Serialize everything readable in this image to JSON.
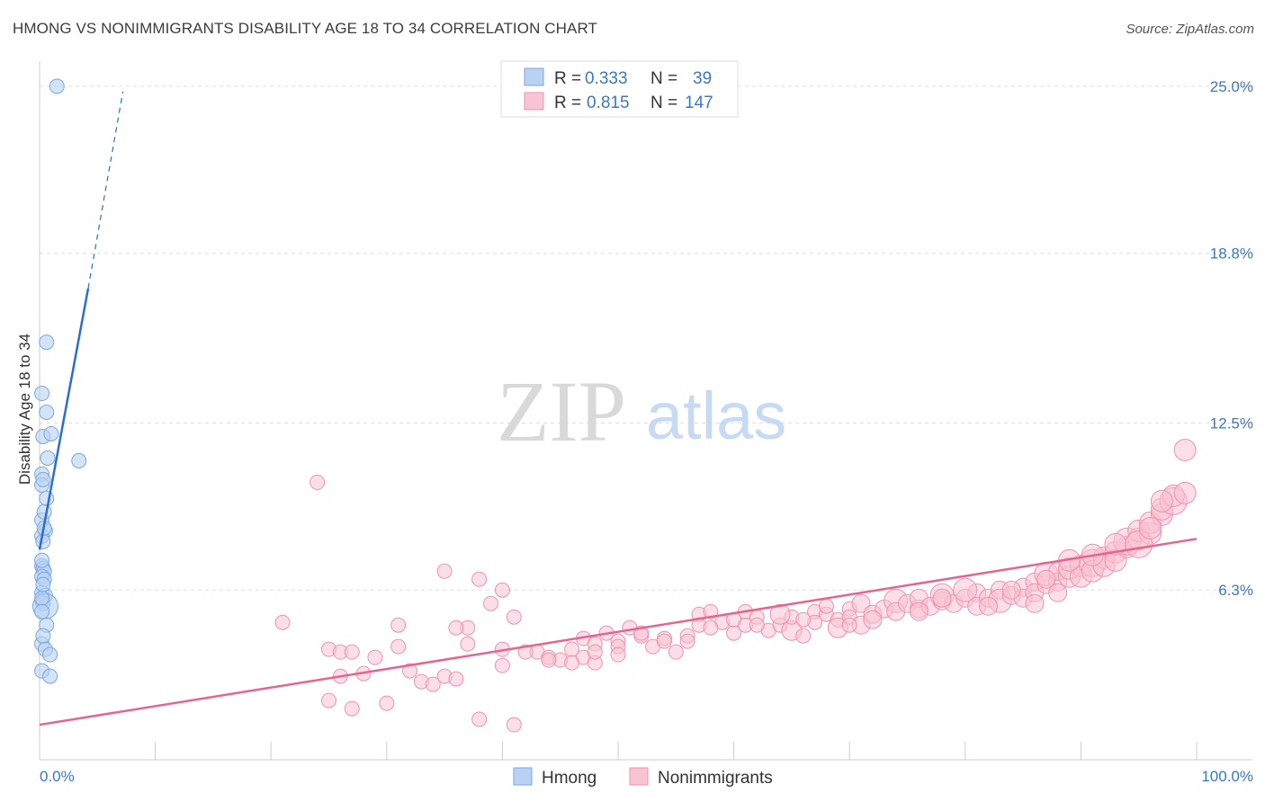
{
  "title": "HMONG VS NONIMMIGRANTS DISABILITY AGE 18 TO 34 CORRELATION CHART",
  "source": "Source: ZipAtlas.com",
  "watermark": {
    "part1": "ZIP",
    "part2": "atlas"
  },
  "colors": {
    "hmong_fill": "#b8d2f3",
    "hmong_stroke": "#7aa7e0",
    "hmong_line": "#2a6fd0",
    "nonimm_fill": "#f8c3d3",
    "nonimm_stroke": "#ee93b0",
    "nonimm_line": "#e8648f",
    "grid": "#dddddd",
    "tick_text": "#3a78c9"
  },
  "legend": {
    "rows": [
      {
        "r_label": "R =",
        "r_value": "0.333",
        "n_label": "N =",
        "n_value": "39"
      },
      {
        "r_label": "R =",
        "r_value": "0.815",
        "n_label": "N =",
        "n_value": "147"
      }
    ]
  },
  "chart_data": {
    "type": "scatter",
    "title": "HMONG VS NONIMMIGRANTS DISABILITY AGE 18 TO 34 CORRELATION CHART",
    "xlabel": "",
    "ylabel": "Disability Age 18 to 34",
    "xlim": [
      0,
      100
    ],
    "ylim": [
      0,
      25.6
    ],
    "x_tick_labels": [
      "0.0%",
      "100.0%"
    ],
    "y_ticks": [
      6.3,
      12.5,
      18.8,
      25.0
    ],
    "y_tick_labels": [
      "6.3%",
      "12.5%",
      "18.8%",
      "25.0%"
    ],
    "grid": true,
    "legend_position": "top-center",
    "bottom_legend": [
      "Hmong",
      "Nonimmigrants"
    ],
    "series": [
      {
        "name": "Hmong",
        "trend": {
          "x0": 0,
          "y0": 7.8,
          "x1": 4.2,
          "y1": 17.5,
          "dash_to_x": 7.2,
          "dash_to_y": 24.8
        },
        "points": [
          [
            1.5,
            25.0
          ],
          [
            0.6,
            15.5
          ],
          [
            0.2,
            13.6
          ],
          [
            0.6,
            12.9
          ],
          [
            0.3,
            12.0
          ],
          [
            1.0,
            12.1
          ],
          [
            3.4,
            11.1
          ],
          [
            0.7,
            11.2
          ],
          [
            0.2,
            10.6
          ],
          [
            0.2,
            10.2
          ],
          [
            0.6,
            9.7
          ],
          [
            0.2,
            8.9
          ],
          [
            0.5,
            8.5
          ],
          [
            0.2,
            8.3
          ],
          [
            0.3,
            8.1
          ],
          [
            0.2,
            7.2
          ],
          [
            0.3,
            7.1
          ],
          [
            0.4,
            7.0
          ],
          [
            0.2,
            6.8
          ],
          [
            0.4,
            6.7
          ],
          [
            0.2,
            6.2
          ],
          [
            0.5,
            6.1
          ],
          [
            0.2,
            5.9
          ],
          [
            0.3,
            5.8
          ],
          [
            0.5,
            5.7
          ],
          [
            0.6,
            5.0
          ],
          [
            0.2,
            4.3
          ],
          [
            0.5,
            4.1
          ],
          [
            0.9,
            3.9
          ],
          [
            0.2,
            3.3
          ],
          [
            0.9,
            3.1
          ],
          [
            0.2,
            6.0
          ],
          [
            0.3,
            6.5
          ],
          [
            0.4,
            8.6
          ],
          [
            0.2,
            7.4
          ],
          [
            0.3,
            10.4
          ],
          [
            0.4,
            9.2
          ],
          [
            0.2,
            5.5
          ],
          [
            0.3,
            4.6
          ]
        ]
      },
      {
        "name": "Nonimmigrants",
        "trend": {
          "x0": 0,
          "y0": 1.3,
          "x1": 100,
          "y1": 8.2
        },
        "points": [
          [
            24,
            10.3
          ],
          [
            35,
            7.0
          ],
          [
            38,
            6.7
          ],
          [
            40,
            6.3
          ],
          [
            39,
            5.8
          ],
          [
            41,
            5.3
          ],
          [
            37,
            4.9
          ],
          [
            36,
            4.9
          ],
          [
            21,
            5.1
          ],
          [
            31,
            5.0
          ],
          [
            25,
            4.1
          ],
          [
            26,
            4.0
          ],
          [
            27,
            4.0
          ],
          [
            29,
            3.8
          ],
          [
            31,
            4.2
          ],
          [
            26,
            3.1
          ],
          [
            28,
            3.2
          ],
          [
            32,
            3.3
          ],
          [
            33,
            2.9
          ],
          [
            34,
            2.8
          ],
          [
            35,
            3.1
          ],
          [
            36,
            3.0
          ],
          [
            37,
            4.3
          ],
          [
            40,
            3.5
          ],
          [
            25,
            2.2
          ],
          [
            27,
            1.9
          ],
          [
            30,
            2.1
          ],
          [
            38,
            1.5
          ],
          [
            41,
            1.3
          ],
          [
            43,
            4.0
          ],
          [
            44,
            3.8
          ],
          [
            45,
            3.7
          ],
          [
            46,
            4.1
          ],
          [
            47,
            3.8
          ],
          [
            47,
            4.5
          ],
          [
            48,
            3.6
          ],
          [
            48,
            4.3
          ],
          [
            49,
            4.7
          ],
          [
            50,
            4.4
          ],
          [
            50,
            4.2
          ],
          [
            51,
            4.9
          ],
          [
            52,
            4.6
          ],
          [
            53,
            4.2
          ],
          [
            54,
            4.5
          ],
          [
            55,
            4.0
          ],
          [
            56,
            4.6
          ],
          [
            57,
            5.4
          ],
          [
            57,
            5.0
          ],
          [
            58,
            5.5
          ],
          [
            59,
            5.1
          ],
          [
            60,
            4.7
          ],
          [
            61,
            5.0
          ],
          [
            61,
            5.5
          ],
          [
            62,
            5.3
          ],
          [
            63,
            4.8
          ],
          [
            64,
            5.0
          ],
          [
            65,
            4.8
          ],
          [
            65,
            5.3
          ],
          [
            66,
            4.6
          ],
          [
            67,
            5.5
          ],
          [
            67,
            5.1
          ],
          [
            68,
            5.4
          ],
          [
            69,
            5.2
          ],
          [
            69,
            4.9
          ],
          [
            70,
            5.6
          ],
          [
            70,
            5.3
          ],
          [
            71,
            5.8
          ],
          [
            71,
            5.0
          ],
          [
            72,
            5.4
          ],
          [
            73,
            5.6
          ],
          [
            74,
            5.9
          ],
          [
            74,
            5.5
          ],
          [
            75,
            5.8
          ],
          [
            76,
            5.6
          ],
          [
            76,
            6.0
          ],
          [
            77,
            5.7
          ],
          [
            78,
            5.9
          ],
          [
            78,
            6.1
          ],
          [
            79,
            5.8
          ],
          [
            80,
            6.0
          ],
          [
            81,
            6.2
          ],
          [
            81,
            5.7
          ],
          [
            82,
            6.0
          ],
          [
            83,
            6.3
          ],
          [
            83,
            5.9
          ],
          [
            84,
            6.1
          ],
          [
            85,
            6.4
          ],
          [
            85,
            6.0
          ],
          [
            86,
            6.6
          ],
          [
            86,
            6.2
          ],
          [
            87,
            6.5
          ],
          [
            87,
            6.9
          ],
          [
            88,
            6.6
          ],
          [
            88,
            7.0
          ],
          [
            89,
            6.8
          ],
          [
            89,
            7.1
          ],
          [
            90,
            7.2
          ],
          [
            90,
            6.8
          ],
          [
            91,
            7.3
          ],
          [
            91,
            7.0
          ],
          [
            92,
            7.5
          ],
          [
            92,
            7.2
          ],
          [
            93,
            7.7
          ],
          [
            93,
            7.4
          ],
          [
            94,
            7.9
          ],
          [
            94,
            8.1
          ],
          [
            95,
            8.2
          ],
          [
            95,
            8.5
          ],
          [
            96,
            8.4
          ],
          [
            96,
            8.8
          ],
          [
            97,
            9.1
          ],
          [
            97,
            9.3
          ],
          [
            98,
            9.6
          ],
          [
            98,
            9.8
          ],
          [
            99,
            11.5
          ],
          [
            88,
            6.2
          ],
          [
            86,
            5.8
          ],
          [
            84,
            6.3
          ],
          [
            82,
            5.7
          ],
          [
            80,
            6.3
          ],
          [
            78,
            6.0
          ],
          [
            76,
            5.5
          ],
          [
            72,
            5.2
          ],
          [
            70,
            5.0
          ],
          [
            68,
            5.7
          ],
          [
            66,
            5.2
          ],
          [
            64,
            5.4
          ],
          [
            62,
            5.0
          ],
          [
            60,
            5.2
          ],
          [
            58,
            4.9
          ],
          [
            56,
            4.4
          ],
          [
            54,
            4.4
          ],
          [
            52,
            4.7
          ],
          [
            50,
            3.9
          ],
          [
            48,
            4.0
          ],
          [
            46,
            3.6
          ],
          [
            44,
            3.7
          ],
          [
            42,
            4.0
          ],
          [
            40,
            4.1
          ],
          [
            93,
            8.0
          ],
          [
            95,
            8.0
          ],
          [
            96,
            8.6
          ],
          [
            97,
            9.6
          ],
          [
            99,
            9.9
          ],
          [
            91,
            7.6
          ],
          [
            89,
            7.4
          ],
          [
            87,
            6.7
          ]
        ]
      }
    ]
  }
}
